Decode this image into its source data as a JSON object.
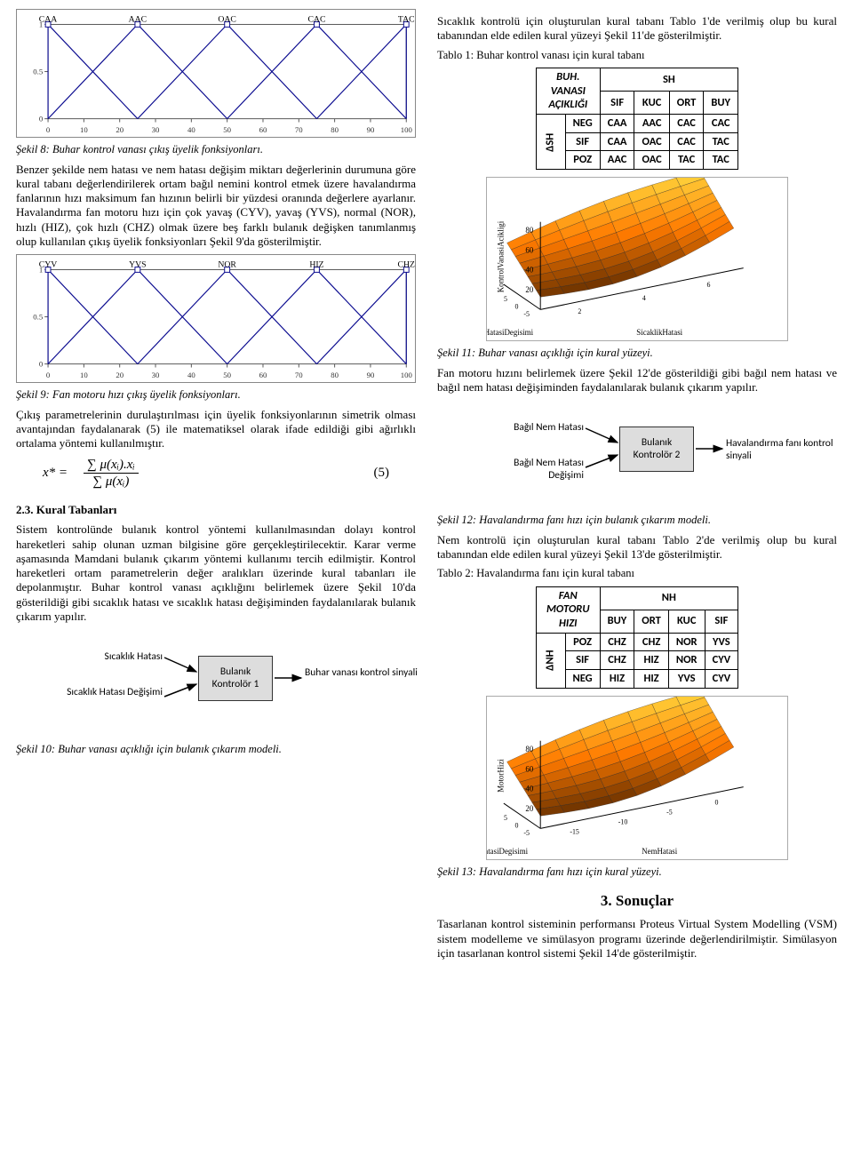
{
  "left": {
    "fig8": {
      "labels": [
        "CAA",
        "AAC",
        "OAC",
        "CAC",
        "TAC"
      ],
      "xlim": [
        0,
        100
      ],
      "ylim": [
        0,
        1
      ],
      "xticks": [
        0,
        10,
        20,
        30,
        40,
        50,
        60,
        70,
        80,
        90,
        100
      ],
      "yticks": [
        0,
        0.5,
        1
      ],
      "peaks": [
        0,
        25,
        50,
        75,
        100
      ],
      "axis_color": "#555",
      "line_color": "#0a0a8f"
    },
    "fig8_caption": "Şekil 8: Buhar kontrol vanası çıkış üyelik fonksiyonları.",
    "p1": "Benzer şekilde nem hatası ve nem hatası değişim miktarı değerlerinin durumuna göre kural tabanı değerlendirilerek ortam bağıl nemini kontrol etmek üzere havalandırma fanlarının hızı maksimum fan hızının belirli bir yüzdesi oranında değerlere ayarlanır. Havalandırma fan motoru hızı için çok yavaş (CYV), yavaş (YVS), normal (NOR), hızlı (HIZ), çok hızlı (CHZ) olmak üzere beş farklı bulanık değişken tanımlanmış olup kullanılan çıkış üyelik fonksiyonları Şekil 9'da gösterilmiştir.",
    "fig9": {
      "labels": [
        "CYV",
        "YVS",
        "NOR",
        "HIZ",
        "CHZ"
      ],
      "xlim": [
        0,
        100
      ],
      "ylim": [
        0,
        1
      ],
      "xticks": [
        0,
        10,
        20,
        30,
        40,
        50,
        60,
        70,
        80,
        90,
        100
      ],
      "yticks": [
        0,
        0.5,
        1
      ],
      "peaks": [
        0,
        25,
        50,
        75,
        100
      ],
      "axis_color": "#555",
      "line_color": "#0a0a8f"
    },
    "fig9_caption": "Şekil 9: Fan motoru hızı çıkış üyelik fonksiyonları.",
    "p2": "Çıkış parametrelerinin durulaştırılması için üyelik fonksiyonlarının simetrik olması avantajından faydalanarak (5) ile matematiksel olarak ifade edildiği gibi ağırlıklı ortalama yöntemi kullanılmıştır.",
    "formula": {
      "lhs": "x* =",
      "num": "∑ μ(xᵢ).xᵢ",
      "den": "∑ μ(xᵢ)",
      "eqnum": "(5)"
    },
    "h_23": "2.3. Kural Tabanları",
    "p3": "Sistem kontrolünde bulanık kontrol yöntemi kullanılmasından dolayı kontrol hareketleri sahip olunan uzman bilgisine göre gerçekleştirilecektir. Karar verme aşamasında Mamdani bulanık çıkarım yöntemi kullanımı tercih edilmiştir. Kontrol hareketleri ortam parametrelerin değer aralıkları üzerinde kural tabanları ile depolanmıştır. Buhar kontrol vanası açıklığını belirlemek üzere Şekil 10'da gösterildiği gibi sıcaklık hatası ve sıcaklık hatası değişiminden faydalanılarak bulanık çıkarım yapılır.",
    "diag10": {
      "in1": "Sıcaklık Hatası",
      "in2": "Sıcaklık Hatası Değişimi",
      "box": "Bulanık Kontrolör 1",
      "out": "Buhar vanası kontrol sinyali",
      "arrow_color": "#000",
      "box_bg": "#d9d9d9"
    },
    "fig10_caption": "Şekil 10: Buhar vanası açıklığı için bulanık çıkarım modeli."
  },
  "right": {
    "p_top": "Sıcaklık kontrolü için oluşturulan kural tabanı Tablo 1'de verilmiş olup bu kural tabanından elde edilen kural yüzeyi Şekil 11'de gösterilmiştir.",
    "tab1_caption": "Tablo 1: Buhar kontrol vanası için kural tabanı",
    "table1": {
      "corner_top": "BUH. VANASI AÇIKLIĞI",
      "col_head": "SH",
      "cols": [
        "SIF",
        "KUC",
        "ORT",
        "BUY"
      ],
      "row_head": "ΔSH",
      "rows_keys": [
        "NEG",
        "SIF",
        "POZ"
      ],
      "cells": [
        [
          "CAA",
          "AAC",
          "CAC",
          "CAC"
        ],
        [
          "CAA",
          "OAC",
          "CAC",
          "TAC"
        ],
        [
          "AAC",
          "OAC",
          "TAC",
          "TAC"
        ]
      ]
    },
    "surface11": {
      "zlabel": "KontrolVanasiAcikligi",
      "xlabel": "SicaklikHatasiDegisimi",
      "ylabel": "SicaklikHatasi",
      "z_ticks": [
        20,
        40,
        60,
        80
      ],
      "x_ticks": [
        -5,
        0,
        5
      ],
      "y_ticks": [
        2,
        4,
        6
      ],
      "cmin": "#3a1a00",
      "cmid": "#ff7a00",
      "cmax": "#ffe94a"
    },
    "fig11_caption": "Şekil 11: Buhar vanası açıklığı için kural yüzeyi.",
    "p_mid": "Fan motoru hızını belirlemek üzere Şekil 12'de gösterildiği gibi bağıl nem hatası ve bağıl nem hatası değişiminden faydalanılarak bulanık çıkarım yapılır.",
    "diag12": {
      "in1": "Bağıl Nem Hatası",
      "in2": "Bağıl Nem Hatası Değişimi",
      "box": "Bulanık Kontrolör 2",
      "out": "Havalandırma fanı kontrol sinyali",
      "arrow_color": "#000",
      "box_bg": "#d9d9d9"
    },
    "fig12_caption": "Şekil 12: Havalandırma fanı hızı için bulanık çıkarım modeli.",
    "p_after12": "Nem kontrolü için oluşturulan kural tabanı Tablo 2'de verilmiş olup bu kural tabanından elde edilen kural yüzeyi Şekil 13'de gösterilmiştir.",
    "tab2_caption": "Tablo 2: Havalandırma fanı için kural tabanı",
    "table2": {
      "corner_top": "FAN MOTORU HIZI",
      "col_head": "NH",
      "cols": [
        "BUY",
        "ORT",
        "KUC",
        "SIF"
      ],
      "row_head": "ΔNH",
      "rows_keys": [
        "POZ",
        "SIF",
        "NEG"
      ],
      "cells": [
        [
          "CHZ",
          "CHZ",
          "NOR",
          "YVS"
        ],
        [
          "CHZ",
          "HIZ",
          "NOR",
          "CYV"
        ],
        [
          "HIZ",
          "HIZ",
          "YVS",
          "CYV"
        ]
      ]
    },
    "suro13": {
      "zlabel": "MotorHizi",
      "xlabel": "NemHatasiDegisimi",
      "ylabel": "NemHatasi",
      "z_ticks": [
        20,
        40,
        60,
        80
      ],
      "x_ticks": [
        -5,
        0,
        5
      ],
      "y_ticks": [
        -15,
        -10,
        -5,
        0
      ],
      "cmin": "#3a1a00",
      "cmid": "#ff7a00",
      "cmax": "#ffe94a"
    },
    "fig13_caption": "Şekil 13: Havalandırma fanı hızı için kural yüzeyi.",
    "h3_title": "3.  Sonuçlar",
    "p_end": "Tasarlanan kontrol sisteminin performansı Proteus Virtual System Modelling (VSM) sistem modelleme ve simülasyon programı üzerinde değerlendirilmiştir. Simülasyon için tasarlanan kontrol sistemi Şekil 14'de gösterilmiştir."
  }
}
